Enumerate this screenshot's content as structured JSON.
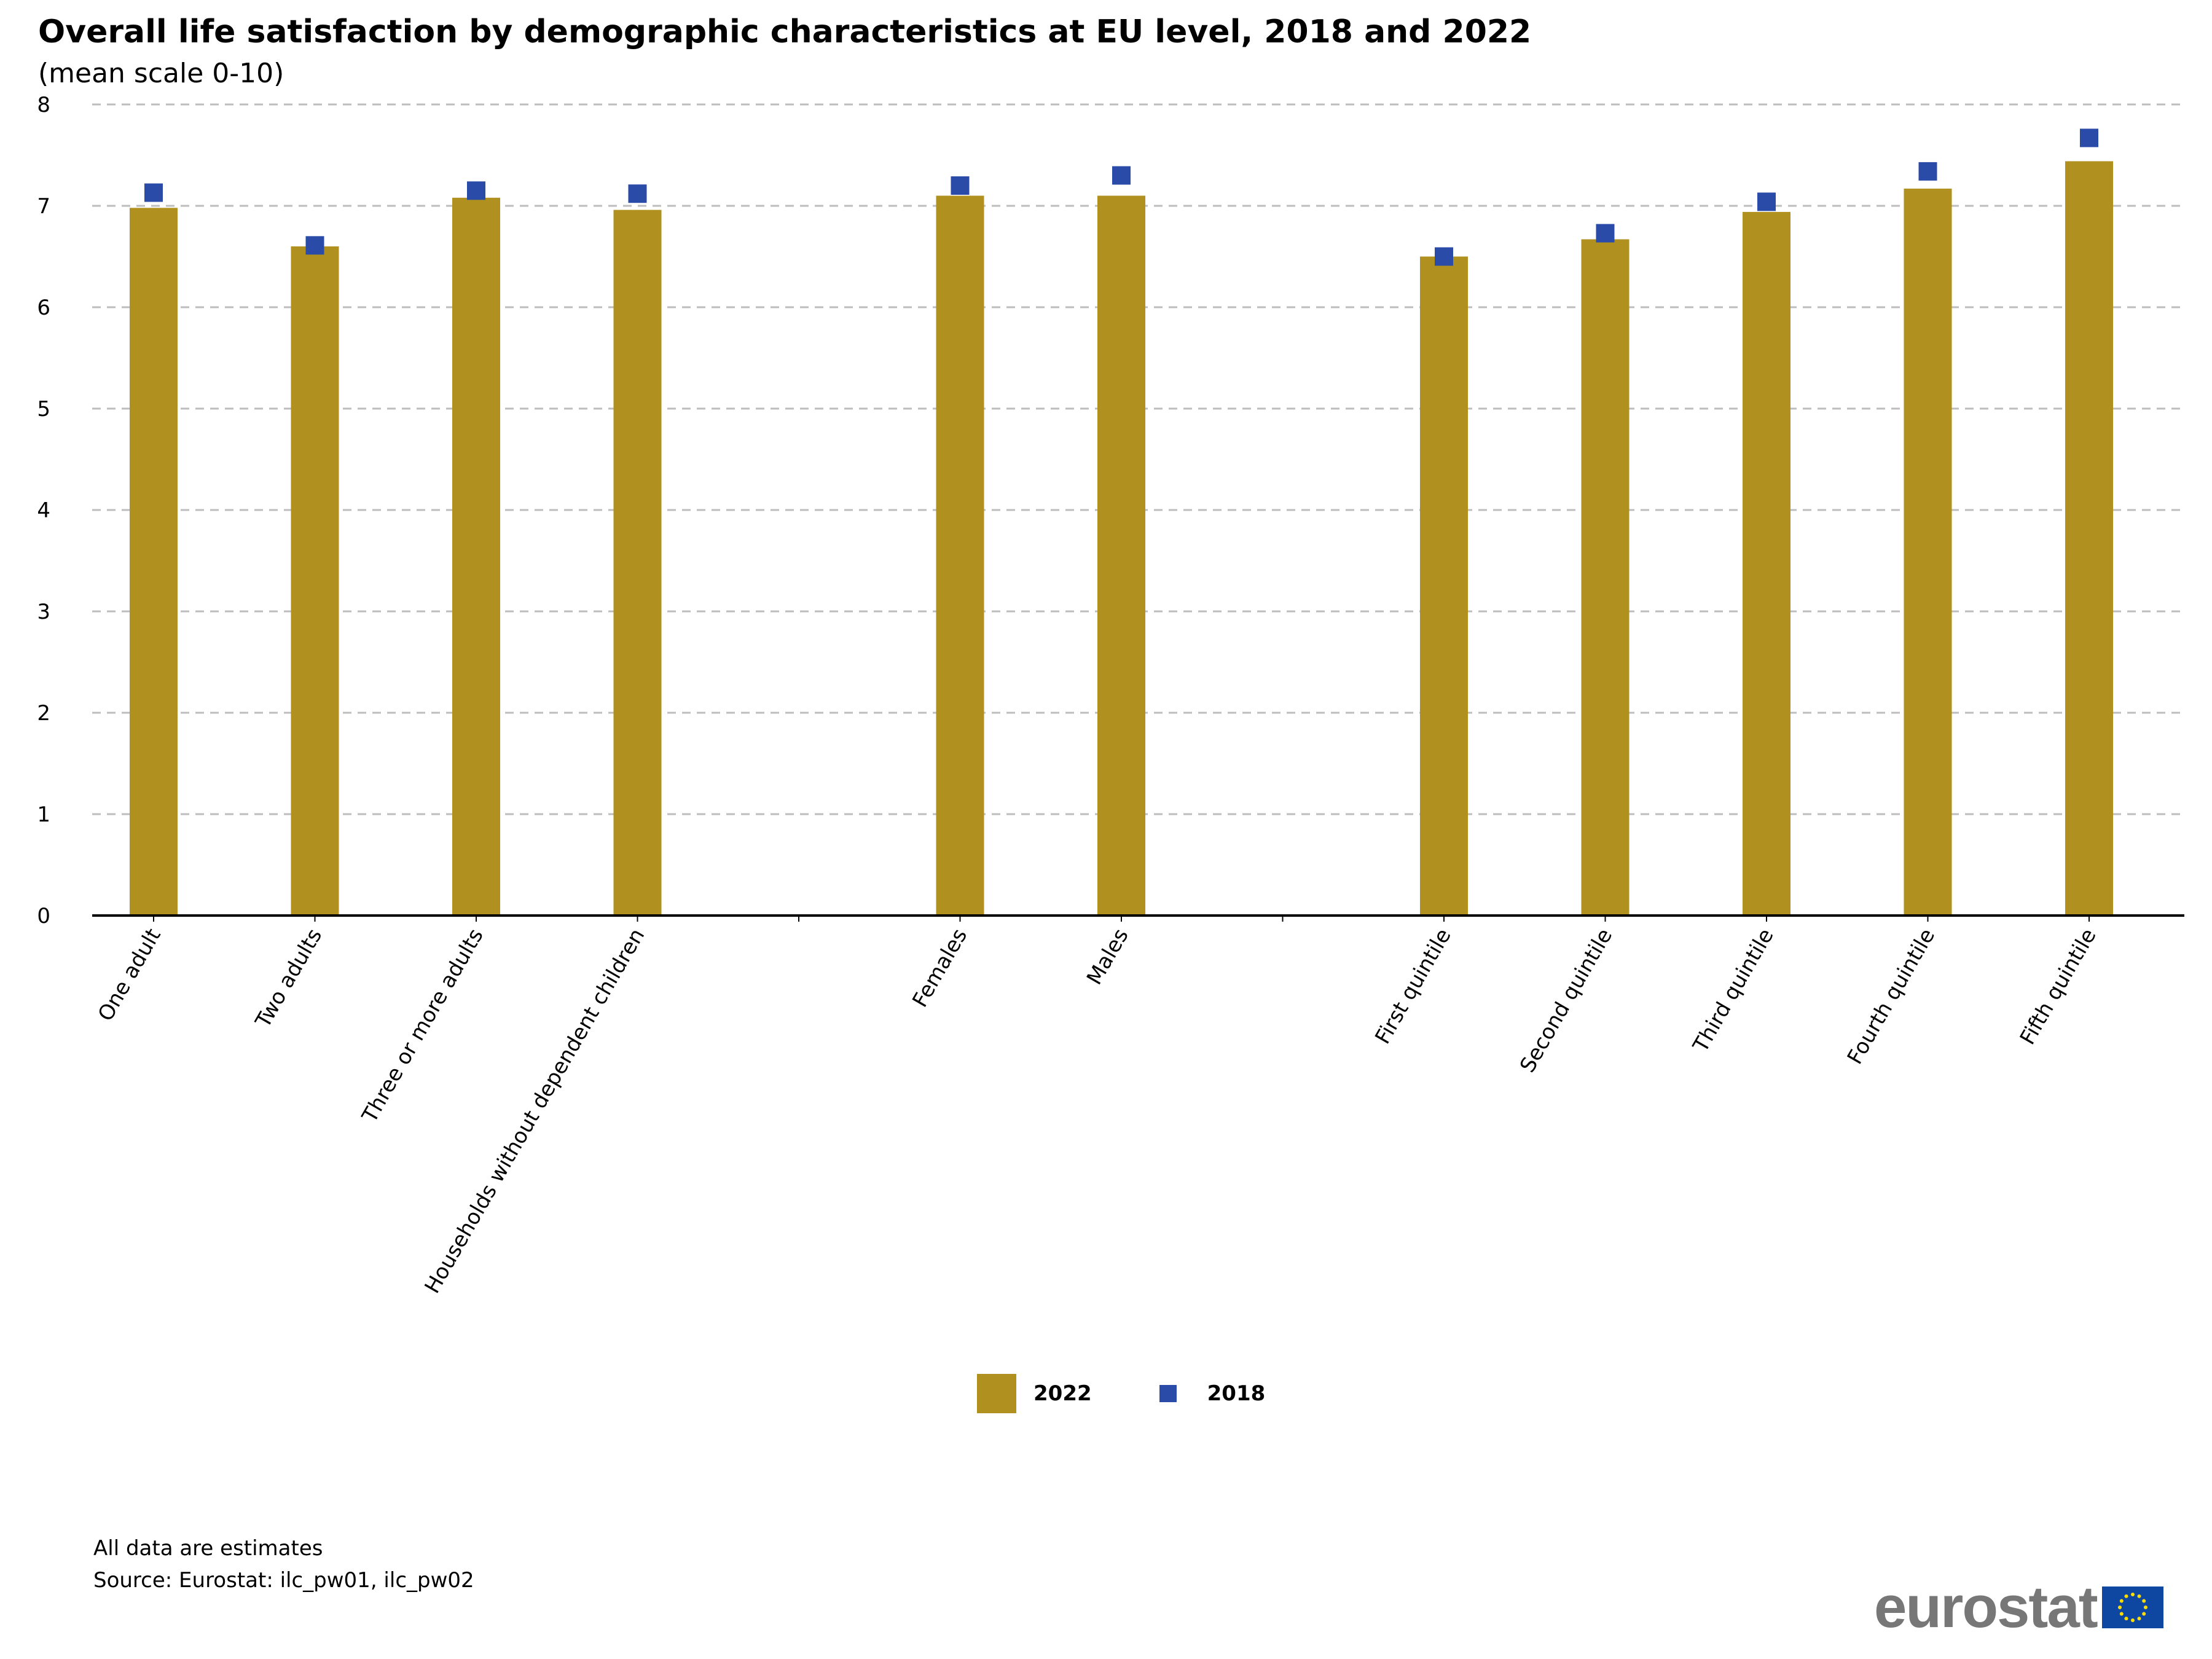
{
  "header": {
    "title": "Overall life satisfaction by demographic characteristics at EU level, 2018 and 2022",
    "subtitle": "(mean scale 0-10)"
  },
  "legend": {
    "series_2022": "2022",
    "series_2018": "2018"
  },
  "footer": {
    "note": "All data are estimates",
    "source": "Source: Eurostat: ilc_pw01, ilc_pw02",
    "logo_text": "eurostat"
  },
  "colors": {
    "bar_2022": "#B09120",
    "marker_2018": "#2A4BA8",
    "grid": "#BDBDBD",
    "axis": "#000000",
    "flag_blue": "#0E47A1",
    "flag_star": "#FFDD00"
  },
  "chart_data": {
    "type": "bar",
    "categories": [
      "One adult",
      "Two adults",
      "Three or more adults",
      "Households without dependent children",
      "",
      "Females",
      "Males",
      "",
      "First quintile",
      "Second quintile",
      "Third quintile",
      "Fourth quintile",
      "Fifth quintile"
    ],
    "series": [
      {
        "name": "2022",
        "type": "bar",
        "values": [
          6.98,
          6.6,
          7.08,
          6.96,
          null,
          7.1,
          7.1,
          null,
          6.5,
          6.67,
          6.94,
          7.17,
          7.44
        ]
      },
      {
        "name": "2018",
        "type": "marker",
        "values": [
          7.13,
          6.61,
          7.15,
          7.12,
          null,
          7.2,
          7.3,
          null,
          6.5,
          6.73,
          7.04,
          7.34,
          7.67
        ]
      }
    ],
    "y_ticks": [
      0,
      1,
      2,
      3,
      4,
      5,
      6,
      7,
      8
    ],
    "ylim": [
      0,
      8
    ],
    "grid": true,
    "legend_position": "bottom-center"
  }
}
